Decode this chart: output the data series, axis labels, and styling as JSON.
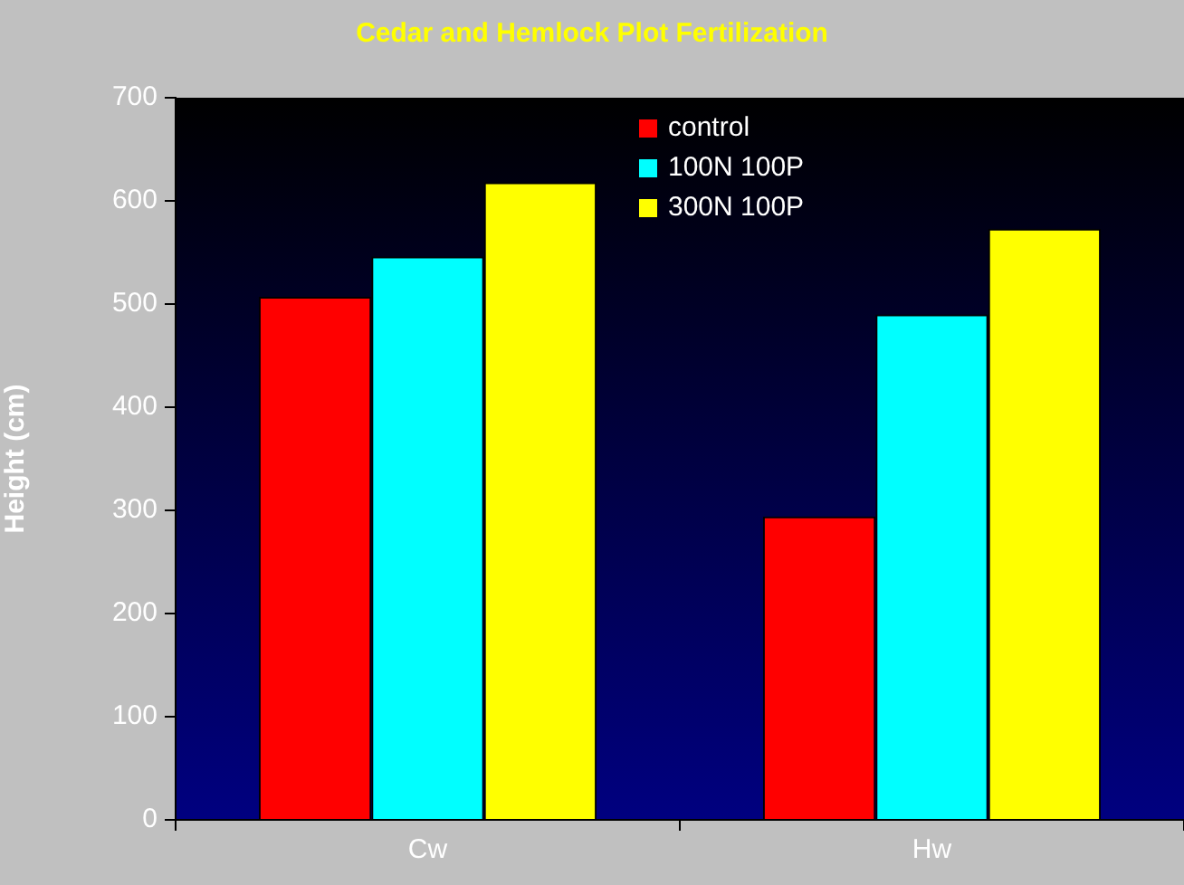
{
  "chart_data": {
    "type": "bar",
    "title": "Cedar and Hemlock Plot Fertilization",
    "ylabel": "Height (cm)",
    "categories": [
      "Cw",
      "Hw"
    ],
    "series": [
      {
        "name": "control",
        "color": "#ff0000",
        "values": [
          507,
          294
        ]
      },
      {
        "name": "100N 100P",
        "color": "#00ffff",
        "values": [
          546,
          490
        ]
      },
      {
        "name": "300N 100P",
        "color": "#ffff00",
        "values": [
          618,
          573
        ]
      }
    ],
    "ylim": [
      0,
      700
    ],
    "yticks": [
      0,
      100,
      200,
      300,
      400,
      500,
      600,
      700
    ],
    "grid": false,
    "legend": "top"
  }
}
